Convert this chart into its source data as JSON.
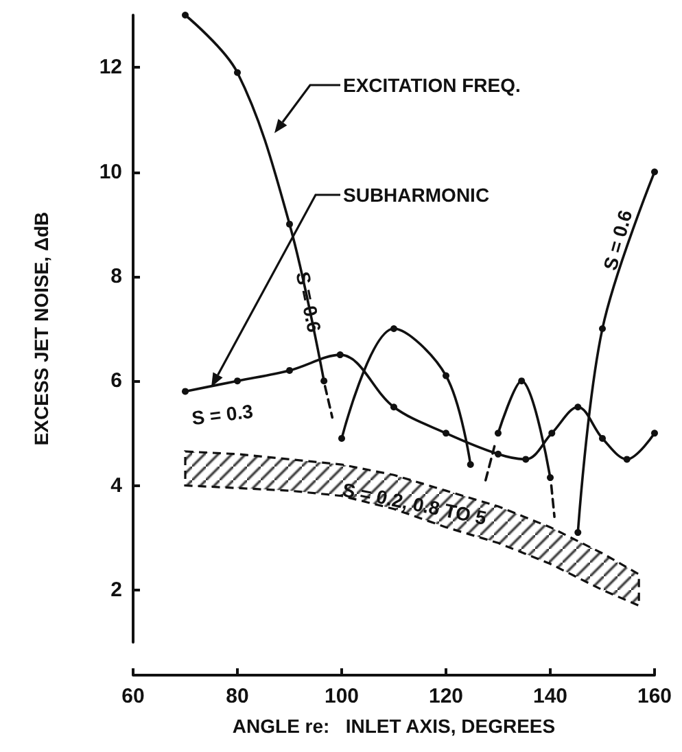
{
  "chart_data": {
    "type": "line",
    "xlabel": "ANGLE re:   INLET AXIS, DEGREES",
    "ylabel": "EXCESS JET NOISE, ΔdB",
    "xlim": [
      60,
      160
    ],
    "xticks": [
      60,
      80,
      100,
      120,
      140,
      160
    ],
    "ylim": [
      1,
      13
    ],
    "yticks": [
      2,
      4,
      6,
      8,
      10,
      12
    ],
    "grid": false,
    "marker": "circle",
    "line_style": "solid",
    "series": [
      {
        "color": "#111111",
        "x": [
          70,
          80,
          90,
          96.6
        ],
        "values": [
          13,
          11.9,
          9.0,
          6.0
        ]
      },
      {
        "color": "#111111",
        "x": [
          96.8,
          98.2
        ],
        "values": [
          5.9,
          5.3
        ],
        "line_style": "dashed",
        "marker": "none"
      },
      {
        "color": "#111111",
        "x": [
          100,
          110,
          120,
          124.7
        ],
        "values": [
          4.9,
          7.0,
          6.1,
          4.4
        ]
      },
      {
        "color": "#111111",
        "x": [
          127.6,
          129.3
        ],
        "values": [
          4.1,
          4.75
        ],
        "line_style": "dashed",
        "marker": "none"
      },
      {
        "color": "#111111",
        "x": [
          130,
          134.5,
          140
        ],
        "values": [
          5.0,
          6.0,
          4.15
        ]
      },
      {
        "color": "#111111",
        "x": [
          140.2,
          140.8
        ],
        "values": [
          4.0,
          3.4
        ],
        "line_style": "dashed",
        "marker": "none"
      },
      {
        "color": "#111111",
        "x": [
          145.3,
          150,
          160
        ],
        "values": [
          3.1,
          7.0,
          10.0
        ]
      },
      {
        "color": "#111111",
        "x": [
          70,
          80,
          90,
          99.7,
          110,
          120,
          130,
          135.3,
          140.3,
          145.3,
          150,
          154.7,
          160
        ],
        "values": [
          5.8,
          6.0,
          6.2,
          6.5,
          5.5,
          5.0,
          4.6,
          4.5,
          5.0,
          5.5,
          4.9,
          4.5,
          5.0
        ]
      },
      {
        "type": "area",
        "color": "#111111",
        "x": [
          70,
          80,
          90,
          100,
          110,
          120,
          130,
          140,
          150,
          157
        ],
        "values": [
          null,
          null,
          null,
          null,
          null,
          null,
          null,
          null,
          null,
          null
        ],
        "lower": [
          4.0,
          3.95,
          3.9,
          3.8,
          3.55,
          3.2,
          2.9,
          2.5,
          2.0,
          1.7
        ],
        "upper": [
          4.65,
          4.6,
          4.5,
          4.4,
          4.2,
          3.9,
          3.6,
          3.2,
          2.7,
          2.3
        ],
        "line_style": "dashed"
      }
    ],
    "annotations": [
      "EXCITATION FREQ.",
      "SUBHARMONIC",
      "S = 0.6",
      "S = 0.6",
      "S = 0.3",
      "S = 0.2, 0.8 TO 5"
    ]
  }
}
